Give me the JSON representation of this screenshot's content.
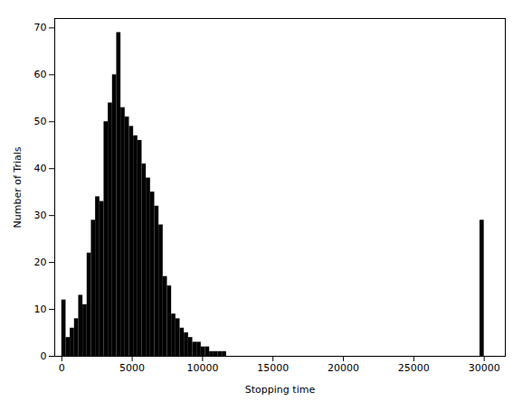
{
  "chart_data": {
    "type": "histogram",
    "xlabel": "Stopping time",
    "ylabel": "Number of Trials",
    "x": [
      0,
      300,
      600,
      900,
      1200,
      1500,
      1800,
      2100,
      2400,
      2700,
      3000,
      3300,
      3600,
      3900,
      4200,
      4500,
      4800,
      5100,
      5400,
      5700,
      6000,
      6300,
      6600,
      6900,
      7200,
      7500,
      7800,
      8100,
      8400,
      8700,
      9000,
      9300,
      9600,
      9900,
      10200,
      10500,
      10800,
      11100,
      11400,
      11700,
      12000,
      29700
    ],
    "bin_width": 300,
    "values": [
      12,
      4,
      6,
      8,
      13,
      11,
      22,
      29,
      34,
      33,
      50,
      54,
      60,
      69,
      53,
      51,
      49,
      47,
      46,
      41,
      38,
      35,
      32,
      28,
      17,
      15,
      9,
      8,
      6,
      5,
      4,
      3,
      3,
      2,
      2,
      1,
      1,
      1,
      1,
      0,
      0,
      29
    ],
    "xlim": [
      -500,
      31500
    ],
    "xticks": [
      0,
      5000,
      10000,
      15000,
      20000,
      25000,
      30000
    ],
    "ylim": [
      0,
      72
    ],
    "yticks": [
      0,
      10,
      20,
      30,
      40,
      50,
      60,
      70
    ],
    "grid": false
  }
}
